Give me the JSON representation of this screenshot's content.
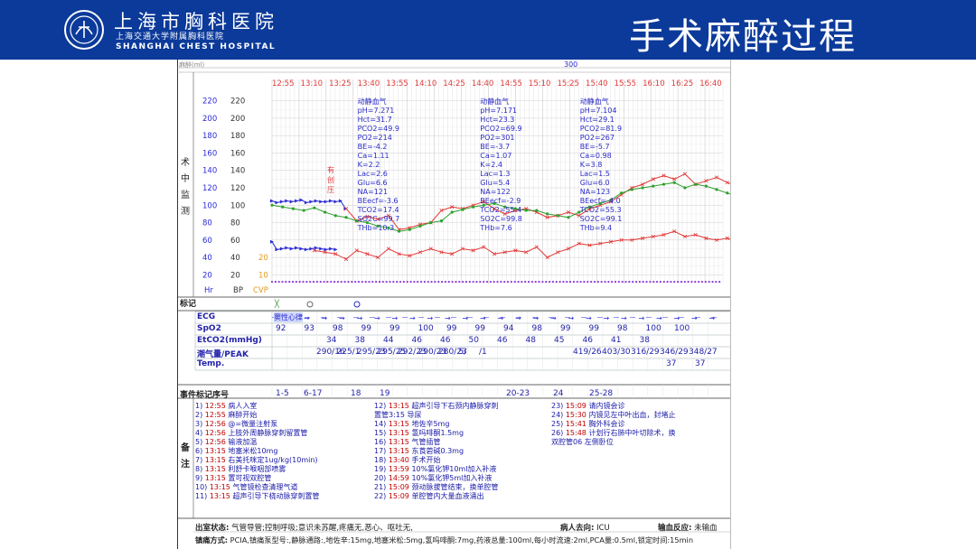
{
  "header": {
    "hospital_cn": "上海市胸科医院",
    "hospital_sub": "上海交通大学附属胸科医院",
    "hospital_en": "SHANGHAI CHEST HOSPITAL",
    "slide_title": "手术麻醉过程",
    "logo_name": "hospital-logo-icon",
    "colors": {
      "header_bg": "#0b3a9a",
      "title_text": "#ffffff"
    }
  },
  "record": {
    "top_left_label": "麻醉(ml)",
    "top_value": "300",
    "side_label": "术中监测",
    "marker_label": "标记",
    "event_label": "事件标记序号",
    "notes_label": "备注"
  },
  "chart_data": {
    "type": "line",
    "times": [
      "12:55",
      "13:10",
      "13:25",
      "13:40",
      "13:55",
      "14:10",
      "14:25",
      "14:40",
      "14:55",
      "15:10",
      "15:25",
      "15:40",
      "15:55",
      "16:10",
      "16:25",
      "16:40"
    ],
    "y_axis_left": [
      "220",
      "200",
      "180",
      "160",
      "140",
      "120",
      "100",
      "80",
      "60",
      "40",
      "20"
    ],
    "y_axis_bp": [
      "220",
      "200",
      "180",
      "160",
      "140",
      "120",
      "100",
      "80",
      "60",
      "40",
      "20"
    ],
    "y_axis_cvp": [
      "20",
      "10"
    ],
    "axis_titles": [
      "Hr",
      "BP",
      "CVP"
    ],
    "ylim": [
      10,
      230
    ],
    "side_annotation": "有创压",
    "series": [
      {
        "name": "Hr",
        "color": "#2a2ad6",
        "values": [
          [
            0,
            105
          ],
          [
            1,
            103
          ],
          [
            2,
            104
          ],
          [
            3,
            105
          ],
          [
            4,
            104
          ],
          [
            5,
            105
          ],
          [
            6,
            106
          ],
          [
            7,
            103
          ],
          [
            8,
            104
          ],
          [
            9,
            105
          ],
          [
            10,
            104
          ],
          [
            11,
            104
          ],
          [
            12,
            105
          ],
          [
            13,
            104
          ],
          [
            14,
            105
          ],
          [
            15,
            96
          ],
          [
            0,
            58
          ],
          [
            1,
            49
          ],
          [
            2,
            50
          ],
          [
            3,
            51
          ],
          [
            4,
            50
          ],
          [
            5,
            51
          ],
          [
            6,
            50
          ],
          [
            7,
            49
          ],
          [
            8,
            50
          ],
          [
            9,
            51
          ],
          [
            10,
            50
          ],
          [
            11,
            49
          ],
          [
            12,
            50
          ],
          [
            13,
            49
          ]
        ]
      },
      {
        "name": "SBP",
        "color": "#e23a3a",
        "values": [
          [
            14,
            96
          ],
          [
            16,
            82
          ],
          [
            18,
            87
          ],
          [
            20,
            84
          ],
          [
            22,
            88
          ],
          [
            24,
            72
          ],
          [
            26,
            74
          ],
          [
            28,
            78
          ],
          [
            30,
            80
          ],
          [
            32,
            94
          ],
          [
            34,
            98
          ],
          [
            36,
            96
          ],
          [
            38,
            100
          ],
          [
            40,
            104
          ],
          [
            42,
            96
          ],
          [
            44,
            90
          ],
          [
            46,
            94
          ],
          [
            48,
            96
          ],
          [
            50,
            92
          ],
          [
            52,
            86
          ],
          [
            54,
            88
          ],
          [
            56,
            92
          ],
          [
            58,
            88
          ],
          [
            60,
            96
          ],
          [
            62,
            100
          ],
          [
            64,
            104
          ],
          [
            66,
            112
          ],
          [
            68,
            120
          ],
          [
            70,
            124
          ],
          [
            72,
            130
          ],
          [
            74,
            134
          ],
          [
            76,
            130
          ],
          [
            78,
            136
          ],
          [
            80,
            124
          ],
          [
            82,
            128
          ],
          [
            84,
            132
          ],
          [
            86,
            126
          ],
          [
            88,
            122
          ],
          [
            90,
            118
          ]
        ]
      },
      {
        "name": "MAP",
        "color": "#2fa02f",
        "values": [
          [
            0,
            100
          ],
          [
            2,
            98
          ],
          [
            4,
            96
          ],
          [
            6,
            94
          ],
          [
            8,
            97
          ],
          [
            10,
            92
          ],
          [
            12,
            88
          ],
          [
            14,
            86
          ],
          [
            16,
            82
          ],
          [
            18,
            80
          ],
          [
            20,
            76
          ],
          [
            22,
            74
          ],
          [
            24,
            70
          ],
          [
            26,
            72
          ],
          [
            28,
            76
          ],
          [
            30,
            80
          ],
          [
            32,
            82
          ],
          [
            34,
            92
          ],
          [
            36,
            95
          ],
          [
            38,
            98
          ],
          [
            40,
            100
          ],
          [
            42,
            102
          ],
          [
            44,
            98
          ],
          [
            46,
            96
          ],
          [
            48,
            94
          ],
          [
            50,
            94
          ],
          [
            52,
            90
          ],
          [
            54,
            88
          ],
          [
            56,
            86
          ],
          [
            58,
            92
          ],
          [
            60,
            98
          ],
          [
            62,
            102
          ],
          [
            64,
            106
          ],
          [
            66,
            114
          ],
          [
            68,
            118
          ],
          [
            70,
            120
          ],
          [
            72,
            122
          ],
          [
            74,
            124
          ],
          [
            76,
            126
          ],
          [
            78,
            120
          ],
          [
            80,
            124
          ],
          [
            82,
            122
          ],
          [
            84,
            118
          ],
          [
            86,
            114
          ],
          [
            88,
            110
          ],
          [
            90,
            108
          ]
        ]
      },
      {
        "name": "DBP",
        "color": "#e23a3a",
        "values": [
          [
            8,
            48
          ],
          [
            10,
            46
          ],
          [
            12,
            44
          ],
          [
            14,
            38
          ],
          [
            16,
            48
          ],
          [
            18,
            44
          ],
          [
            20,
            40
          ],
          [
            22,
            50
          ],
          [
            24,
            44
          ],
          [
            26,
            42
          ],
          [
            28,
            46
          ],
          [
            30,
            50
          ],
          [
            32,
            46
          ],
          [
            34,
            44
          ],
          [
            36,
            50
          ],
          [
            38,
            48
          ],
          [
            40,
            52
          ],
          [
            42,
            44
          ],
          [
            44,
            46
          ],
          [
            46,
            48
          ],
          [
            48,
            46
          ],
          [
            50,
            52
          ],
          [
            52,
            40
          ],
          [
            54,
            46
          ],
          [
            56,
            50
          ],
          [
            58,
            56
          ],
          [
            60,
            54
          ],
          [
            62,
            56
          ],
          [
            64,
            58
          ],
          [
            66,
            60
          ],
          [
            68,
            60
          ],
          [
            70,
            62
          ],
          [
            72,
            64
          ],
          [
            74,
            66
          ],
          [
            76,
            70
          ],
          [
            78,
            64
          ],
          [
            80,
            66
          ],
          [
            82,
            62
          ],
          [
            84,
            60
          ],
          [
            86,
            62
          ],
          [
            88,
            58
          ],
          [
            90,
            56
          ]
        ]
      }
    ],
    "abg": [
      {
        "col": 3,
        "text": "动静血气\npH=7.271\nHct=31.7\nPCO2=49.9\nPO2=214\nBE=-4.2\nCa=1.11\nK=2.2\nLac=2.6\nGlu=6.6\nNA=121\nBEecf=-3.6\nTCO2=17.4\nSO2C=99.7\nTHb=10.3"
      },
      {
        "col": 7.3,
        "text": "动静血气\npH=7.171\nHct=23.3\nPCO2=69.9\nPO2=301\nBE=-3.7\nCa=1.07\nK=2.4\nLac=1.3\nGlu=5.4\nNA=122\nBEecf=-2.9\nTCO2=55.4\nSO2C=99.8\nTHb=7.6"
      },
      {
        "col": 10.8,
        "text": "动静血气\npH=7.104\nHct=29.1\nPCO2=81.9\nPO2=267\nBE=-5.7\nCa=0.98\nK=3.8\nLac=1.5\nGlu=6.0\nNA=123\nBEecf=-4.0\nTCO2=55.3\nSO2C=99.1\nTHb=9.4"
      }
    ]
  },
  "monitor_rows": {
    "ecg": {
      "label": "ECG",
      "first": "窦性心律"
    },
    "spo2": {
      "label": "SpO2",
      "values": [
        "92",
        "93",
        "98",
        "99",
        "99",
        "100",
        "99",
        "99",
        "94",
        "98",
        "99",
        "99",
        "98",
        "100",
        "100"
      ]
    },
    "etco2": {
      "label": "EtCO2(mmHg)",
      "values": [
        "34",
        "38",
        "44",
        "46",
        "46",
        "50",
        "46",
        "48",
        "45",
        "46",
        "41",
        "38"
      ]
    },
    "tidal": {
      "label": "潮气量/PEAK",
      "values": [
        "290/16",
        "225/1",
        "295/23",
        "295/25",
        "292/23",
        "290/23",
        "280/23",
        "5/",
        "/1",
        "419/26",
        "403/30",
        "316/29",
        "346/29",
        "348/27"
      ]
    },
    "temp": {
      "label": "Temp.",
      "values": [
        "37",
        "37"
      ]
    },
    "events": {
      "values": [
        "1-5",
        "6-17",
        "18",
        "19",
        "20-23",
        "24",
        "25-28"
      ]
    }
  },
  "notes": {
    "col1": [
      {
        "n": "1)",
        "t": "12:55",
        "d": "病人入室"
      },
      {
        "n": "2)",
        "t": "12:55",
        "d": "麻醉开始"
      },
      {
        "n": "3)",
        "t": "12:56",
        "d": "@=微量注射泵"
      },
      {
        "n": "4)",
        "t": "12:56",
        "d": "上肢外周静脉穿刺留置管"
      },
      {
        "n": "5)",
        "t": "12:56",
        "d": "输液加温"
      },
      {
        "n": "6)",
        "t": "13:15",
        "d": "地塞米松10mg"
      },
      {
        "n": "7)",
        "t": "13:15",
        "d": "右美托咪定1ug/kg(10min)"
      },
      {
        "n": "8)",
        "t": "13:15",
        "d": "利舒卡喉咽部喷雾"
      },
      {
        "n": "9)",
        "t": "13:15",
        "d": "置可视双腔管"
      },
      {
        "n": "10)",
        "t": "13:15",
        "d": "气管镜检查清理气道"
      },
      {
        "n": "11)",
        "t": "13:15",
        "d": "超声引导下桡动脉穿刺置管"
      }
    ],
    "col2": [
      {
        "n": "12)",
        "t": "13:15",
        "d": "超声引导下右颈内静脉穿刺"
      },
      {
        "n": "",
        "t": "",
        "d": "置管3:15 导尿"
      },
      {
        "n": "14)",
        "t": "13:15",
        "d": "地佐辛5mg"
      },
      {
        "n": "15)",
        "t": "13:15",
        "d": "氢吗啡酮1.5mg"
      },
      {
        "n": "16)",
        "t": "13:15",
        "d": "气管插管"
      },
      {
        "n": "17)",
        "t": "13:15",
        "d": "东莨菪碱0.3mg"
      },
      {
        "n": "18)",
        "t": "13:40",
        "d": "手术开始"
      },
      {
        "n": "19)",
        "t": "13:59",
        "d": "10%氯化钾10ml加入补液"
      },
      {
        "n": "20)",
        "t": "14:59",
        "d": "10%氯化钾5ml加入补液"
      },
      {
        "n": "21)",
        "t": "15:09",
        "d": "颈动脉拔管结束，换单腔管"
      },
      {
        "n": "22)",
        "t": "15:09",
        "d": "单腔管内大量血液涌出"
      }
    ],
    "col3": [
      {
        "n": "23)",
        "t": "15:09",
        "d": "请内镜会诊"
      },
      {
        "n": "24)",
        "t": "15:30",
        "d": "内镜见左中叶出血，封堵止"
      },
      {
        "n": "25)",
        "t": "15:41",
        "d": "胸外科会诊"
      },
      {
        "n": "26)",
        "t": "15:48",
        "d": "计划行右肺中叶切除术，换"
      },
      {
        "n": "",
        "t": "",
        "d": "双腔管06 左侧卧位"
      }
    ]
  },
  "footer": {
    "line1_label": "出室状态:",
    "line1_text": "气管导管;控制呼吸;意识未苏醒,疼痛无,恶心、呕吐无,",
    "dest_label": "病人去向:",
    "dest_value": "ICU",
    "reaction_label": "输血反应:",
    "reaction_value": "未输血",
    "line2_label": "镇痛方式:",
    "line2_text": "PCIA,镇痛泵型号:,静脉通路:,地佐辛:15mg,地塞米松:5mg,氢吗啡酮:7mg,药液总量:100ml,每小时流速:2ml,PCA量:0.5ml,锁定时间:15min"
  }
}
